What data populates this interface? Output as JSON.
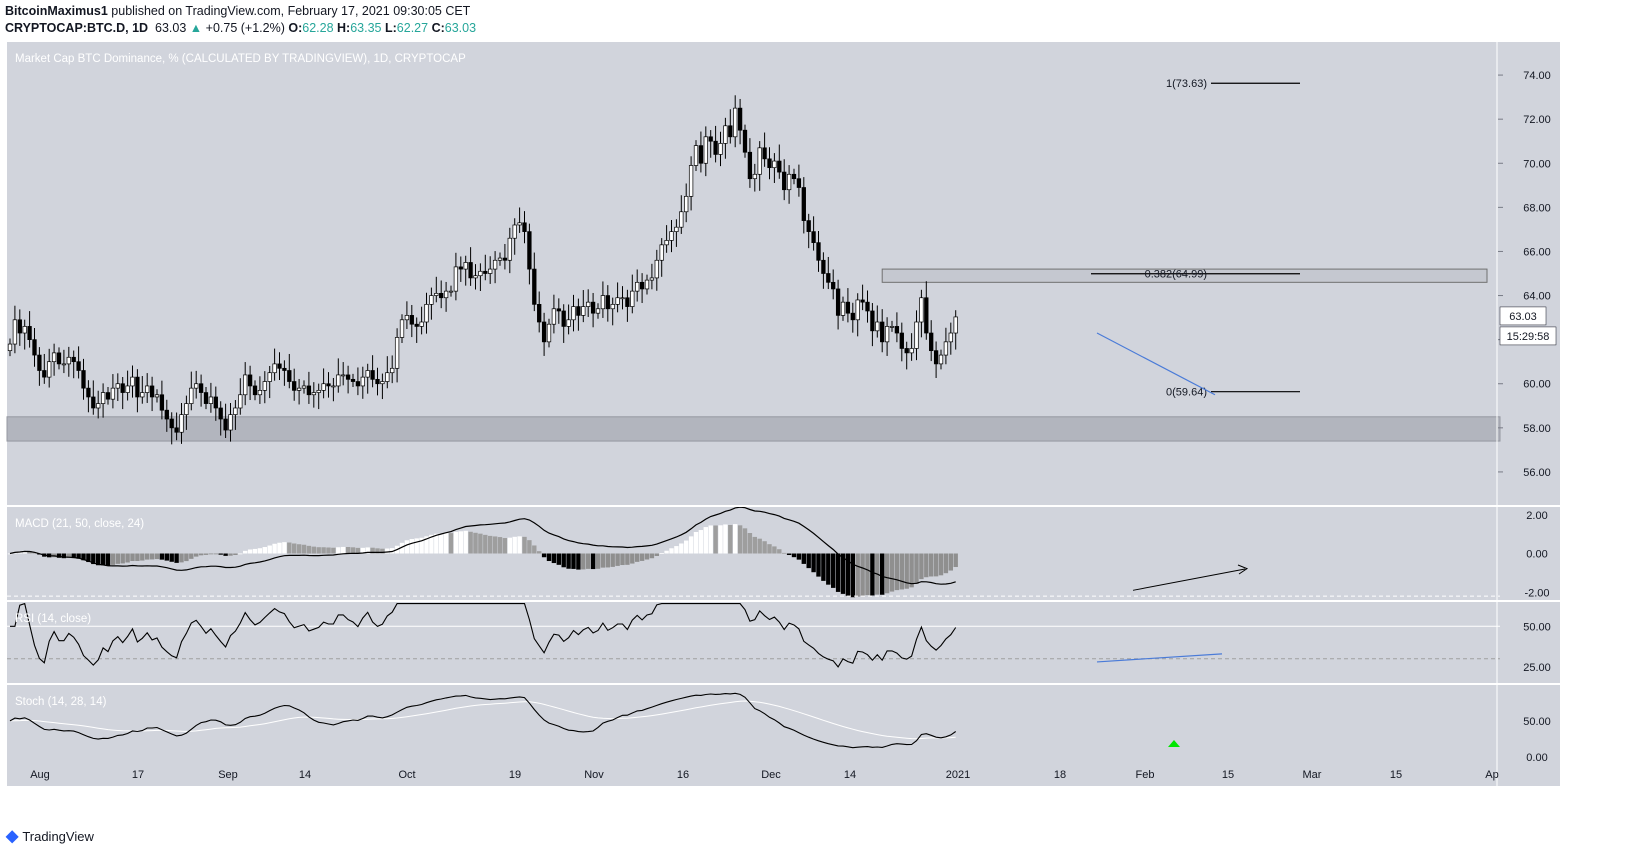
{
  "header": {
    "author": "BitcoinMaximus1",
    "published_text": "published on TradingView.com, February 17, 2021 09:30:05 CET",
    "symbol": "CRYPTOCAP:BTC.D, 1D",
    "last": "63.03",
    "change_arrow": "▲",
    "change": "+0.75 (+1.2%)",
    "o_label": "O:",
    "o": "62.28",
    "h_label": "H:",
    "h": "63.35",
    "l_label": "L:",
    "l": "62.27",
    "c_label": "C:",
    "c": "63.03"
  },
  "footer": {
    "brand": "TradingView",
    "logo_icon": "tradingview-logo-icon"
  },
  "colors": {
    "pane_bg": "#d1d4dc",
    "axis_bg": "#ffffff",
    "candle_up": "#ffffff",
    "candle_down": "#000000",
    "blue_line": "#4a7bd8",
    "support_zone": "#b2b5be",
    "stoch_signal": "#ffffff",
    "signal_marker": "#00e600"
  },
  "chart_data": {
    "type": "candlestick",
    "title": "Market Cap BTC Dominance, % (CALCULATED BY TRADINGVIEW), 1D, CRYPTOCAP",
    "ylim": [
      54.5,
      75.5
    ],
    "y_ticks": [
      "74.00",
      "72.00",
      "70.00",
      "68.00",
      "66.00",
      "64.00",
      "62.00",
      "60.00",
      "58.00",
      "56.00"
    ],
    "x_ticks": [
      "Aug",
      "17",
      "Sep",
      "14",
      "Oct",
      "19",
      "Nov",
      "16",
      "Dec",
      "14",
      "2021",
      "18",
      "Feb",
      "15",
      "Mar",
      "15",
      "Ap"
    ],
    "last_price_label": "63.03",
    "countdown_label": "15:29:58",
    "fib_levels": [
      {
        "label": "1(73.63)",
        "value": 73.63
      },
      {
        "label": "0.382(64.99)",
        "value": 64.99
      },
      {
        "label": "0(59.64)",
        "value": 59.64
      }
    ],
    "resistance_zone": [
      64.6,
      65.2
    ],
    "support_zone": [
      57.4,
      58.5
    ],
    "closes": [
      61.8,
      62.9,
      62.3,
      62.6,
      62.0,
      61.3,
      60.6,
      60.3,
      61.0,
      61.4,
      60.9,
      60.9,
      61.2,
      61.0,
      60.6,
      59.8,
      59.4,
      58.9,
      59.1,
      59.6,
      59.3,
      59.8,
      60.0,
      59.6,
      59.9,
      60.3,
      59.4,
      59.6,
      59.9,
      59.4,
      59.5,
      58.8,
      58.4,
      58.0,
      57.8,
      58.6,
      59.1,
      59.8,
      60.0,
      59.6,
      59.1,
      59.4,
      58.9,
      58.4,
      57.9,
      58.6,
      58.9,
      59.5,
      60.4,
      59.9,
      59.5,
      59.7,
      60.1,
      60.5,
      60.9,
      60.7,
      60.6,
      60.1,
      59.7,
      59.8,
      59.9,
      59.5,
      59.6,
      59.7,
      60.0,
      59.9,
      59.9,
      60.4,
      60.4,
      60.2,
      60.1,
      59.9,
      60.3,
      60.6,
      60.2,
      60.0,
      60.1,
      60.5,
      60.7,
      62.1,
      62.9,
      63.1,
      62.7,
      62.6,
      62.8,
      63.6,
      64.0,
      64.1,
      63.9,
      64.2,
      64.2,
      65.3,
      65.2,
      65.5,
      64.8,
      64.9,
      65.1,
      65.0,
      65.2,
      65.6,
      65.7,
      65.6,
      66.6,
      67.2,
      67.3,
      66.9,
      65.2,
      63.6,
      62.8,
      61.9,
      62.7,
      63.4,
      63.3,
      62.6,
      62.9,
      63.5,
      63.1,
      63.5,
      63.7,
      63.2,
      63.4,
      64.0,
      63.4,
      63.6,
      63.9,
      63.9,
      63.5,
      64.2,
      64.6,
      64.3,
      64.7,
      64.8,
      65.6,
      66.3,
      66.5,
      66.9,
      67.1,
      67.8,
      68.5,
      69.9,
      70.8,
      70.0,
      71.2,
      71.0,
      70.4,
      70.9,
      71.7,
      71.2,
      72.5,
      71.5,
      70.5,
      69.3,
      69.5,
      70.7,
      70.2,
      69.8,
      70.1,
      69.6,
      68.8,
      69.5,
      69.3,
      68.9,
      67.4,
      66.9,
      66.4,
      65.6,
      65.0,
      64.6,
      64.3,
      63.1,
      63.7,
      63.2,
      62.9,
      63.8,
      63.7,
      63.3,
      62.4,
      62.8,
      61.9,
      62.6,
      62.6,
      62.3,
      61.6,
      61.4,
      61.6,
      62.8,
      63.9,
      62.3,
      61.5,
      60.9,
      61.3,
      61.9,
      62.3,
      63.03
    ],
    "macd_label": "MACD (21, 50, close, 24)",
    "macd_ticks": [
      "2.00",
      "0.00",
      "-2.00"
    ],
    "macd_ylim": [
      -2.4,
      2.4
    ],
    "rsi_label": "RSI (14, close)",
    "rsi_ticks": [
      "50.00",
      "25.00"
    ],
    "rsi_ylim": [
      15,
      65
    ],
    "stoch_label": "Stoch (14, 28, 14)",
    "stoch_ticks": [
      "50.00",
      "0.00"
    ],
    "stoch_ylim": [
      -10,
      100
    ]
  }
}
